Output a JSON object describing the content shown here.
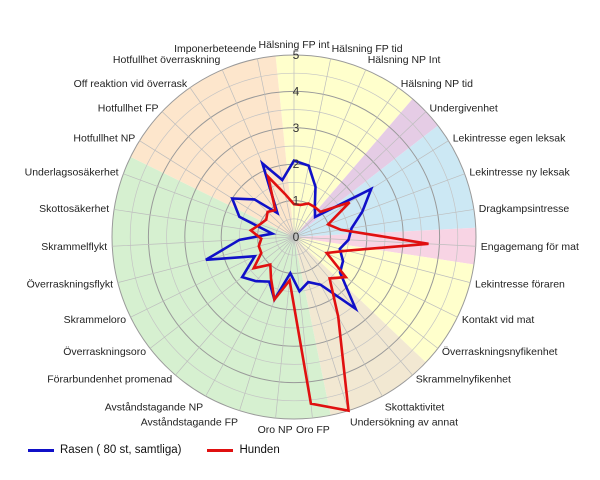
{
  "chart_data": {
    "type": "radar",
    "rmax": 5,
    "ticks": [
      "0",
      "1",
      "2",
      "3",
      "4",
      "5"
    ],
    "categories": [
      "Hälsning FP int",
      "Hälsning FP tid",
      "Hälsning NP Int",
      "Hälsning NP tid",
      "Undergivenhet",
      "Lekintresse egen leksak",
      "Lekintresse ny leksak",
      "Dragkampsintresse",
      "Engagemang för mat",
      "Lekintresse föraren",
      "Kontakt vid mat",
      "Överraskningsnyfikenhet",
      "Skrammelnyfikenhet",
      "Skottaktivitet",
      "Undersökning av annat",
      "Oro FP",
      "Oro NP",
      "Avståndstagande FP",
      "Avståndstagande NP",
      "Förarbundenhet promenad",
      "Överraskningsoro",
      "Skrammeloro",
      "Överraskningsflykt",
      "Skrammelflykt",
      "Skottosäkerhet",
      "Underlagsosäkerhet",
      "Hotfullhet NP",
      "Hotfullhet FP",
      "Off reaktion vid överrask",
      "Hotfullhet överraskning",
      "Imponerbeteende"
    ],
    "sector_colors": [
      {
        "from": 0,
        "to": 3,
        "color": "#ffffcc"
      },
      {
        "from": 4,
        "to": 4,
        "color": "#e5cce5"
      },
      {
        "from": 5,
        "to": 7,
        "color": "#cce8f4"
      },
      {
        "from": 8,
        "to": 8,
        "color": "#f8d4e4"
      },
      {
        "from": 9,
        "to": 11,
        "color": "#ffffcc"
      },
      {
        "from": 12,
        "to": 14,
        "color": "#f2e8d2"
      },
      {
        "from": 15,
        "to": 25,
        "color": "#d6f0d0"
      },
      {
        "from": 26,
        "to": 30,
        "color": "#fde6cc"
      }
    ],
    "series": [
      {
        "name": "Rasen ( 80 st, samtliga)",
        "color": "#1010c8",
        "values": [
          2.1,
          2.0,
          1.5,
          1.0,
          0.8,
          2.5,
          2.0,
          1.6,
          1.5,
          1.3,
          1.5,
          1.6,
          2.6,
          1.5,
          1.3,
          1.5,
          1.0,
          1.8,
          1.4,
          1.6,
          1.8,
          1.2,
          2.5,
          1.5,
          0.6,
          1.6,
          2.0,
          1.5,
          0.8,
          2.2,
          1.6
        ]
      },
      {
        "name": "Hunden",
        "color": "#e01010",
        "values": [
          0.9,
          0.9,
          1.0,
          1.0,
          1.0,
          1.8,
          1.0,
          1.3,
          3.7,
          1.5,
          1.0,
          1.8,
          1.5,
          2.5,
          5.0,
          4.6,
          1.2,
          1.8,
          1.3,
          1.0,
          1.4,
          1.0,
          1.0,
          0.9,
          1.2,
          1.0,
          0.9,
          1.0,
          0.9,
          1.8,
          1.2
        ]
      }
    ]
  }
}
